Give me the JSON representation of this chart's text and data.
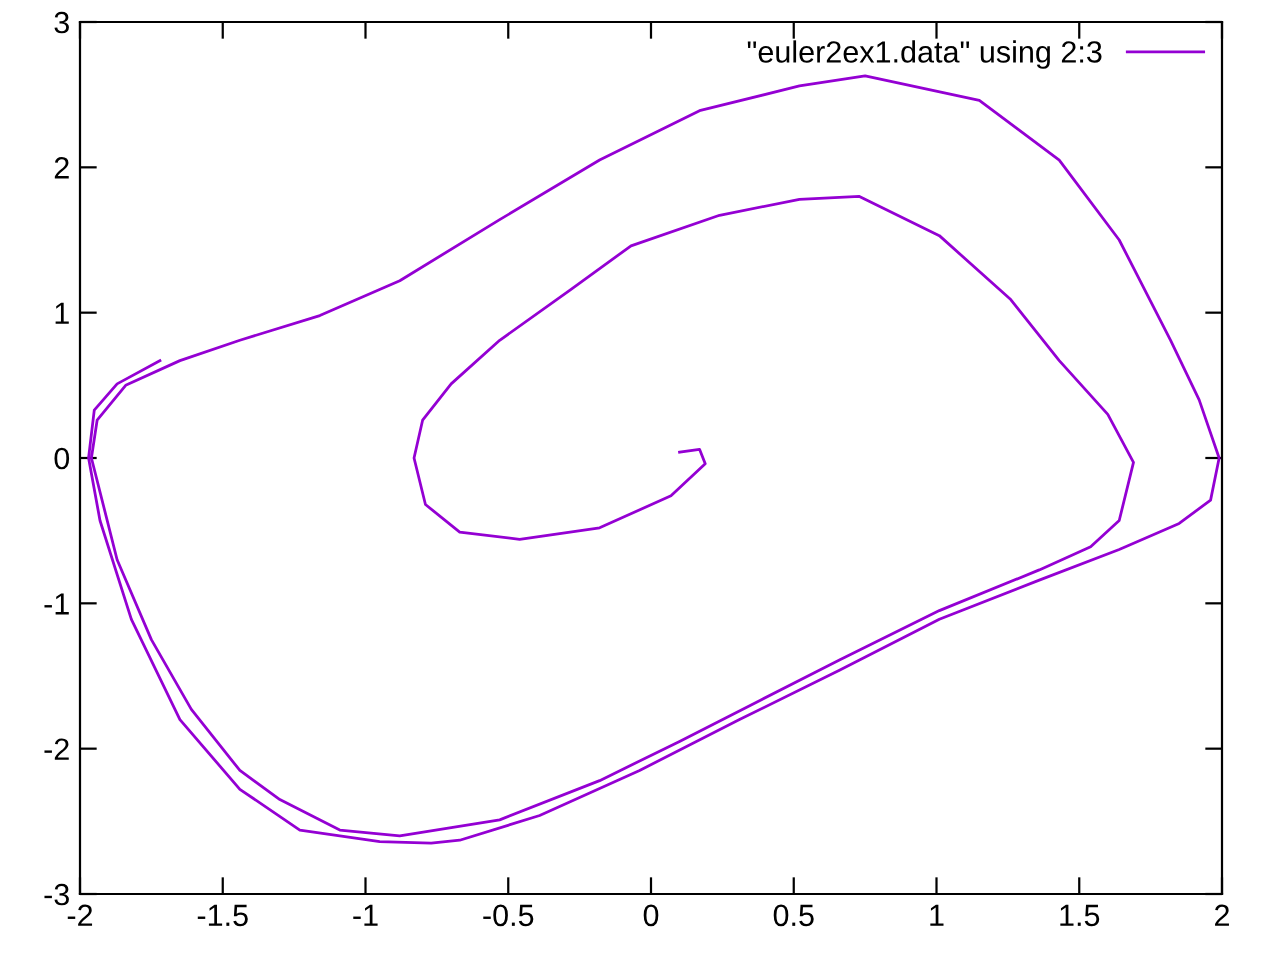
{
  "chart_data": {
    "type": "line",
    "xlim": [
      -2,
      2
    ],
    "ylim": [
      -3,
      3
    ],
    "xticks": [
      -2,
      -1.5,
      -1,
      -0.5,
      0,
      0.5,
      1,
      1.5,
      2
    ],
    "yticks": [
      -3,
      -2,
      -1,
      0,
      1,
      2,
      3
    ],
    "grid": false,
    "legend": "top right",
    "marker": "none",
    "line_style": "solid",
    "series": [
      {
        "name": "\"euler2ex1.data\" using 2:3",
        "color": "#9400d3",
        "x": [
          0.1,
          0.17,
          0.19,
          0.07,
          -0.18,
          -0.46,
          -0.67,
          -0.79,
          -0.83,
          -0.8,
          -0.7,
          -0.53,
          -0.28,
          -0.07,
          0.24,
          0.52,
          0.73,
          1.01,
          1.26,
          1.43,
          1.6,
          1.69,
          1.64,
          1.54,
          1.36,
          1.01,
          0.66,
          0.38,
          0.1,
          -0.18,
          -0.53,
          -0.88,
          -1.09,
          -1.3,
          -1.44,
          -1.61,
          -1.75,
          -1.87,
          -1.96,
          -1.94,
          -1.84,
          -1.65,
          -1.44,
          -1.16,
          -0.88,
          -0.53,
          -0.18,
          0.17,
          0.52,
          0.75,
          1.15,
          1.43,
          1.64,
          1.82,
          1.92,
          1.99,
          1.96,
          1.85,
          1.64,
          1.36,
          1.01,
          0.66,
          0.31,
          -0.04,
          -0.39,
          -0.67,
          -0.77,
          -0.95,
          -1.23,
          -1.44,
          -1.65,
          -1.82,
          -1.93,
          -1.97,
          -1.95,
          -1.87,
          -1.72
        ],
        "values": [
          0.04,
          0.06,
          -0.04,
          -0.26,
          -0.48,
          -0.56,
          -0.51,
          -0.32,
          0.0,
          0.26,
          0.51,
          0.81,
          1.16,
          1.46,
          1.67,
          1.78,
          1.8,
          1.53,
          1.09,
          0.67,
          0.3,
          -0.03,
          -0.43,
          -0.61,
          -0.77,
          -1.05,
          -1.39,
          -1.67,
          -1.95,
          -2.22,
          -2.49,
          -2.6,
          -2.56,
          -2.35,
          -2.15,
          -1.73,
          -1.25,
          -0.7,
          0.0,
          0.26,
          0.5,
          0.67,
          0.81,
          0.98,
          1.22,
          1.64,
          2.05,
          2.39,
          2.56,
          2.63,
          2.46,
          2.05,
          1.5,
          0.81,
          0.4,
          0.0,
          -0.29,
          -0.45,
          -0.63,
          -0.84,
          -1.11,
          -1.46,
          -1.8,
          -2.15,
          -2.46,
          -2.63,
          -2.65,
          -2.64,
          -2.56,
          -2.28,
          -1.8,
          -1.11,
          -0.43,
          0.0,
          0.33,
          0.51,
          0.67
        ]
      }
    ]
  }
}
